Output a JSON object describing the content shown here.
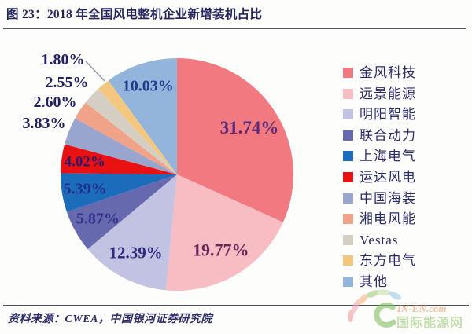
{
  "header": {
    "title": "图 23：2018 年全国风电整机企业新增装机占比"
  },
  "chart_data": {
    "type": "pie",
    "title": "2018 年全国风电整机企业新增装机占比",
    "labels": [
      "金风科技",
      "远景能源",
      "明阳智能",
      "联合动力",
      "上海电气",
      "运达风电",
      "中国海装",
      "湘电风能",
      "Vestas",
      "东方电气",
      "其他"
    ],
    "values": [
      31.74,
      19.77,
      12.39,
      5.87,
      5.39,
      4.02,
      3.83,
      2.6,
      2.55,
      1.8,
      10.03
    ],
    "display_values": [
      "31.74%",
      "19.77%",
      "12.39%",
      "5.87%",
      "5.39%",
      "4.02%",
      "3.83%",
      "2.60%",
      "2.55%",
      "1.80%",
      "10.03%"
    ],
    "colors": [
      "#F2797F",
      "#F8BCC3",
      "#C2C3E2",
      "#6769AF",
      "#1C6CBC",
      "#EA1112",
      "#98A6CF",
      "#F0A389",
      "#D5CFC3",
      "#F3C87E",
      "#93B5DB"
    ],
    "label_colors": [
      "#5C2B78",
      "#66295C",
      "#2C2A80",
      "#34308A",
      "#202F8C",
      "#231E74",
      "#1F2060",
      "#1F2060",
      "#1F2060",
      "#1F2060",
      "#1D3A8C"
    ],
    "legend_position": "right",
    "start_angle_deg": 0,
    "direction": "clockwise",
    "legend_text_color": "#2B2B6B"
  },
  "footer": {
    "source": "资料来源：CWEA，中国银河证券研究院"
  },
  "watermark": {
    "site_en": "IN-EN.com",
    "site_cn": "国际能源网"
  }
}
